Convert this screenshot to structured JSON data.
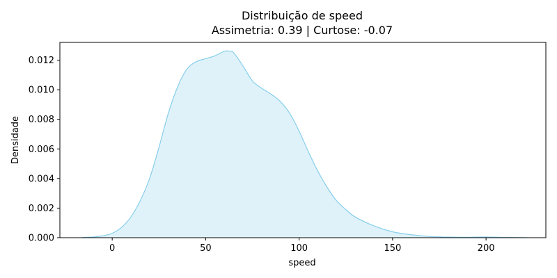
{
  "chart_data": {
    "type": "area",
    "title": "Distribuição de speed",
    "subtitle": "Assimetria: 0.39 | Curtose: -0.07",
    "xlabel": "speed",
    "ylabel": "Densidade",
    "xlim": [
      -28,
      232
    ],
    "ylim": [
      0,
      0.0132
    ],
    "xticks": [
      0,
      50,
      100,
      150,
      200
    ],
    "xtick_labels": [
      "0",
      "50",
      "100",
      "150",
      "200"
    ],
    "yticks": [
      0.0,
      0.002,
      0.004,
      0.006,
      0.008,
      0.01,
      0.012
    ],
    "ytick_labels": [
      "0.000",
      "0.002",
      "0.004",
      "0.006",
      "0.008",
      "0.010",
      "0.012"
    ],
    "grid": false,
    "colors": {
      "line": "#87ceeb",
      "fill": "#87ceeb",
      "fill_opacity": 0.27
    },
    "series": [
      {
        "x": [
          -16,
          -10,
          -5,
          0,
          5,
          10,
          15,
          20,
          25,
          30,
          35,
          40,
          45,
          50,
          55,
          60,
          63,
          65,
          70,
          75,
          80,
          85,
          90,
          95,
          100,
          105,
          110,
          115,
          120,
          125,
          130,
          140,
          150,
          160,
          170,
          180,
          190,
          200,
          210,
          222
        ],
        "y": [
          2e-05,
          5e-05,
          0.00013,
          0.0003,
          0.0007,
          0.0014,
          0.0025,
          0.004,
          0.0061,
          0.0084,
          0.0102,
          0.0114,
          0.0119,
          0.0121,
          0.0123,
          0.0126,
          0.0126,
          0.0125,
          0.0116,
          0.0106,
          0.0101,
          0.0097,
          0.0092,
          0.0084,
          0.0072,
          0.0058,
          0.0045,
          0.0034,
          0.0025,
          0.0019,
          0.0014,
          0.0008,
          0.0004,
          0.0002,
          8e-05,
          4e-05,
          3e-05,
          5e-05,
          2e-05,
          0.0
        ]
      }
    ]
  }
}
